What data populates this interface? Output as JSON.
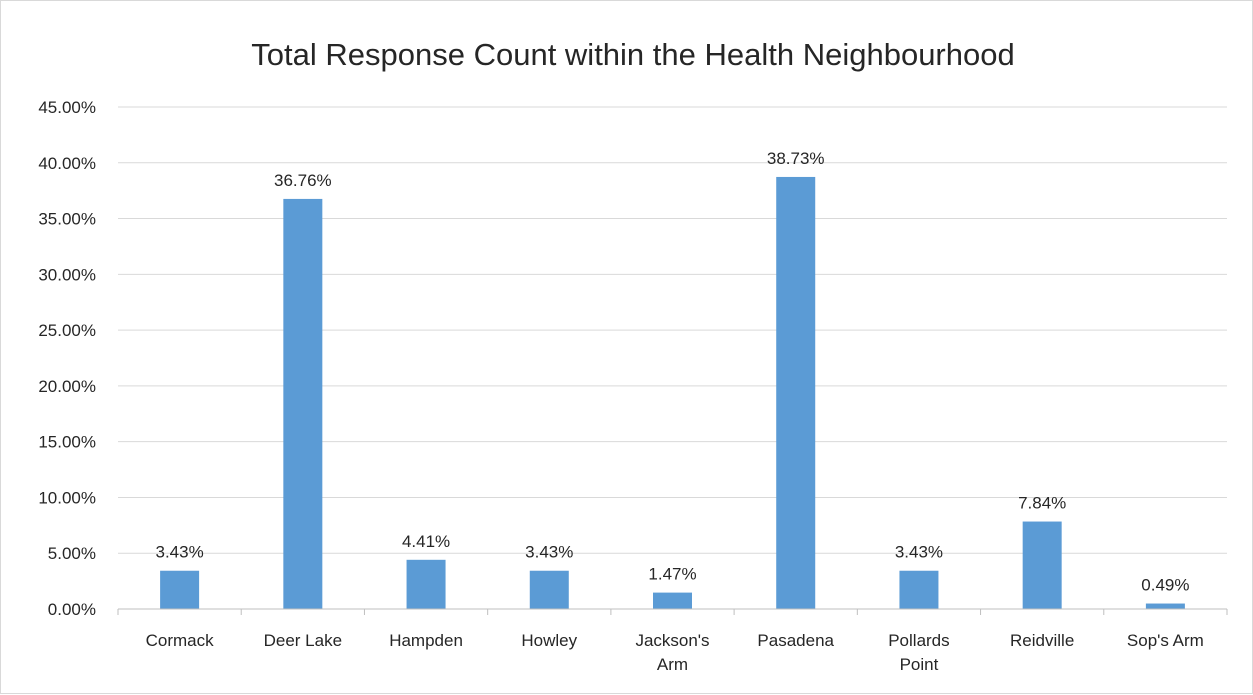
{
  "chart_data": {
    "type": "bar",
    "title": "Total Response Count within the Health Neighbourhood",
    "xlabel": "",
    "ylabel": "",
    "categories": [
      "Cormack",
      "Deer Lake",
      "Hampden",
      "Howley",
      "Jackson's Arm",
      "Pasadena",
      "Pollards Point",
      "Reidville",
      "Sop's Arm"
    ],
    "category_lines": [
      [
        "Cormack"
      ],
      [
        "Deer Lake"
      ],
      [
        "Hampden"
      ],
      [
        "Howley"
      ],
      [
        "Jackson's",
        "Arm"
      ],
      [
        "Pasadena"
      ],
      [
        "Pollards",
        "Point"
      ],
      [
        "Reidville"
      ],
      [
        "Sop's Arm"
      ]
    ],
    "values": [
      3.43,
      36.76,
      4.41,
      3.43,
      1.47,
      38.73,
      3.43,
      7.84,
      0.49
    ],
    "data_labels": [
      "3.43%",
      "36.76%",
      "4.41%",
      "3.43%",
      "1.47%",
      "38.73%",
      "3.43%",
      "7.84%",
      "0.49%"
    ],
    "ylim": [
      0,
      45
    ],
    "yticks": [
      0,
      5,
      10,
      15,
      20,
      25,
      30,
      35,
      40,
      45
    ],
    "ytick_labels": [
      "0.00%",
      "5.00%",
      "10.00%",
      "15.00%",
      "20.00%",
      "25.00%",
      "30.00%",
      "35.00%",
      "40.00%",
      "45.00%"
    ],
    "grid": true,
    "legend": "none",
    "bar_color": "#5b9bd5"
  }
}
